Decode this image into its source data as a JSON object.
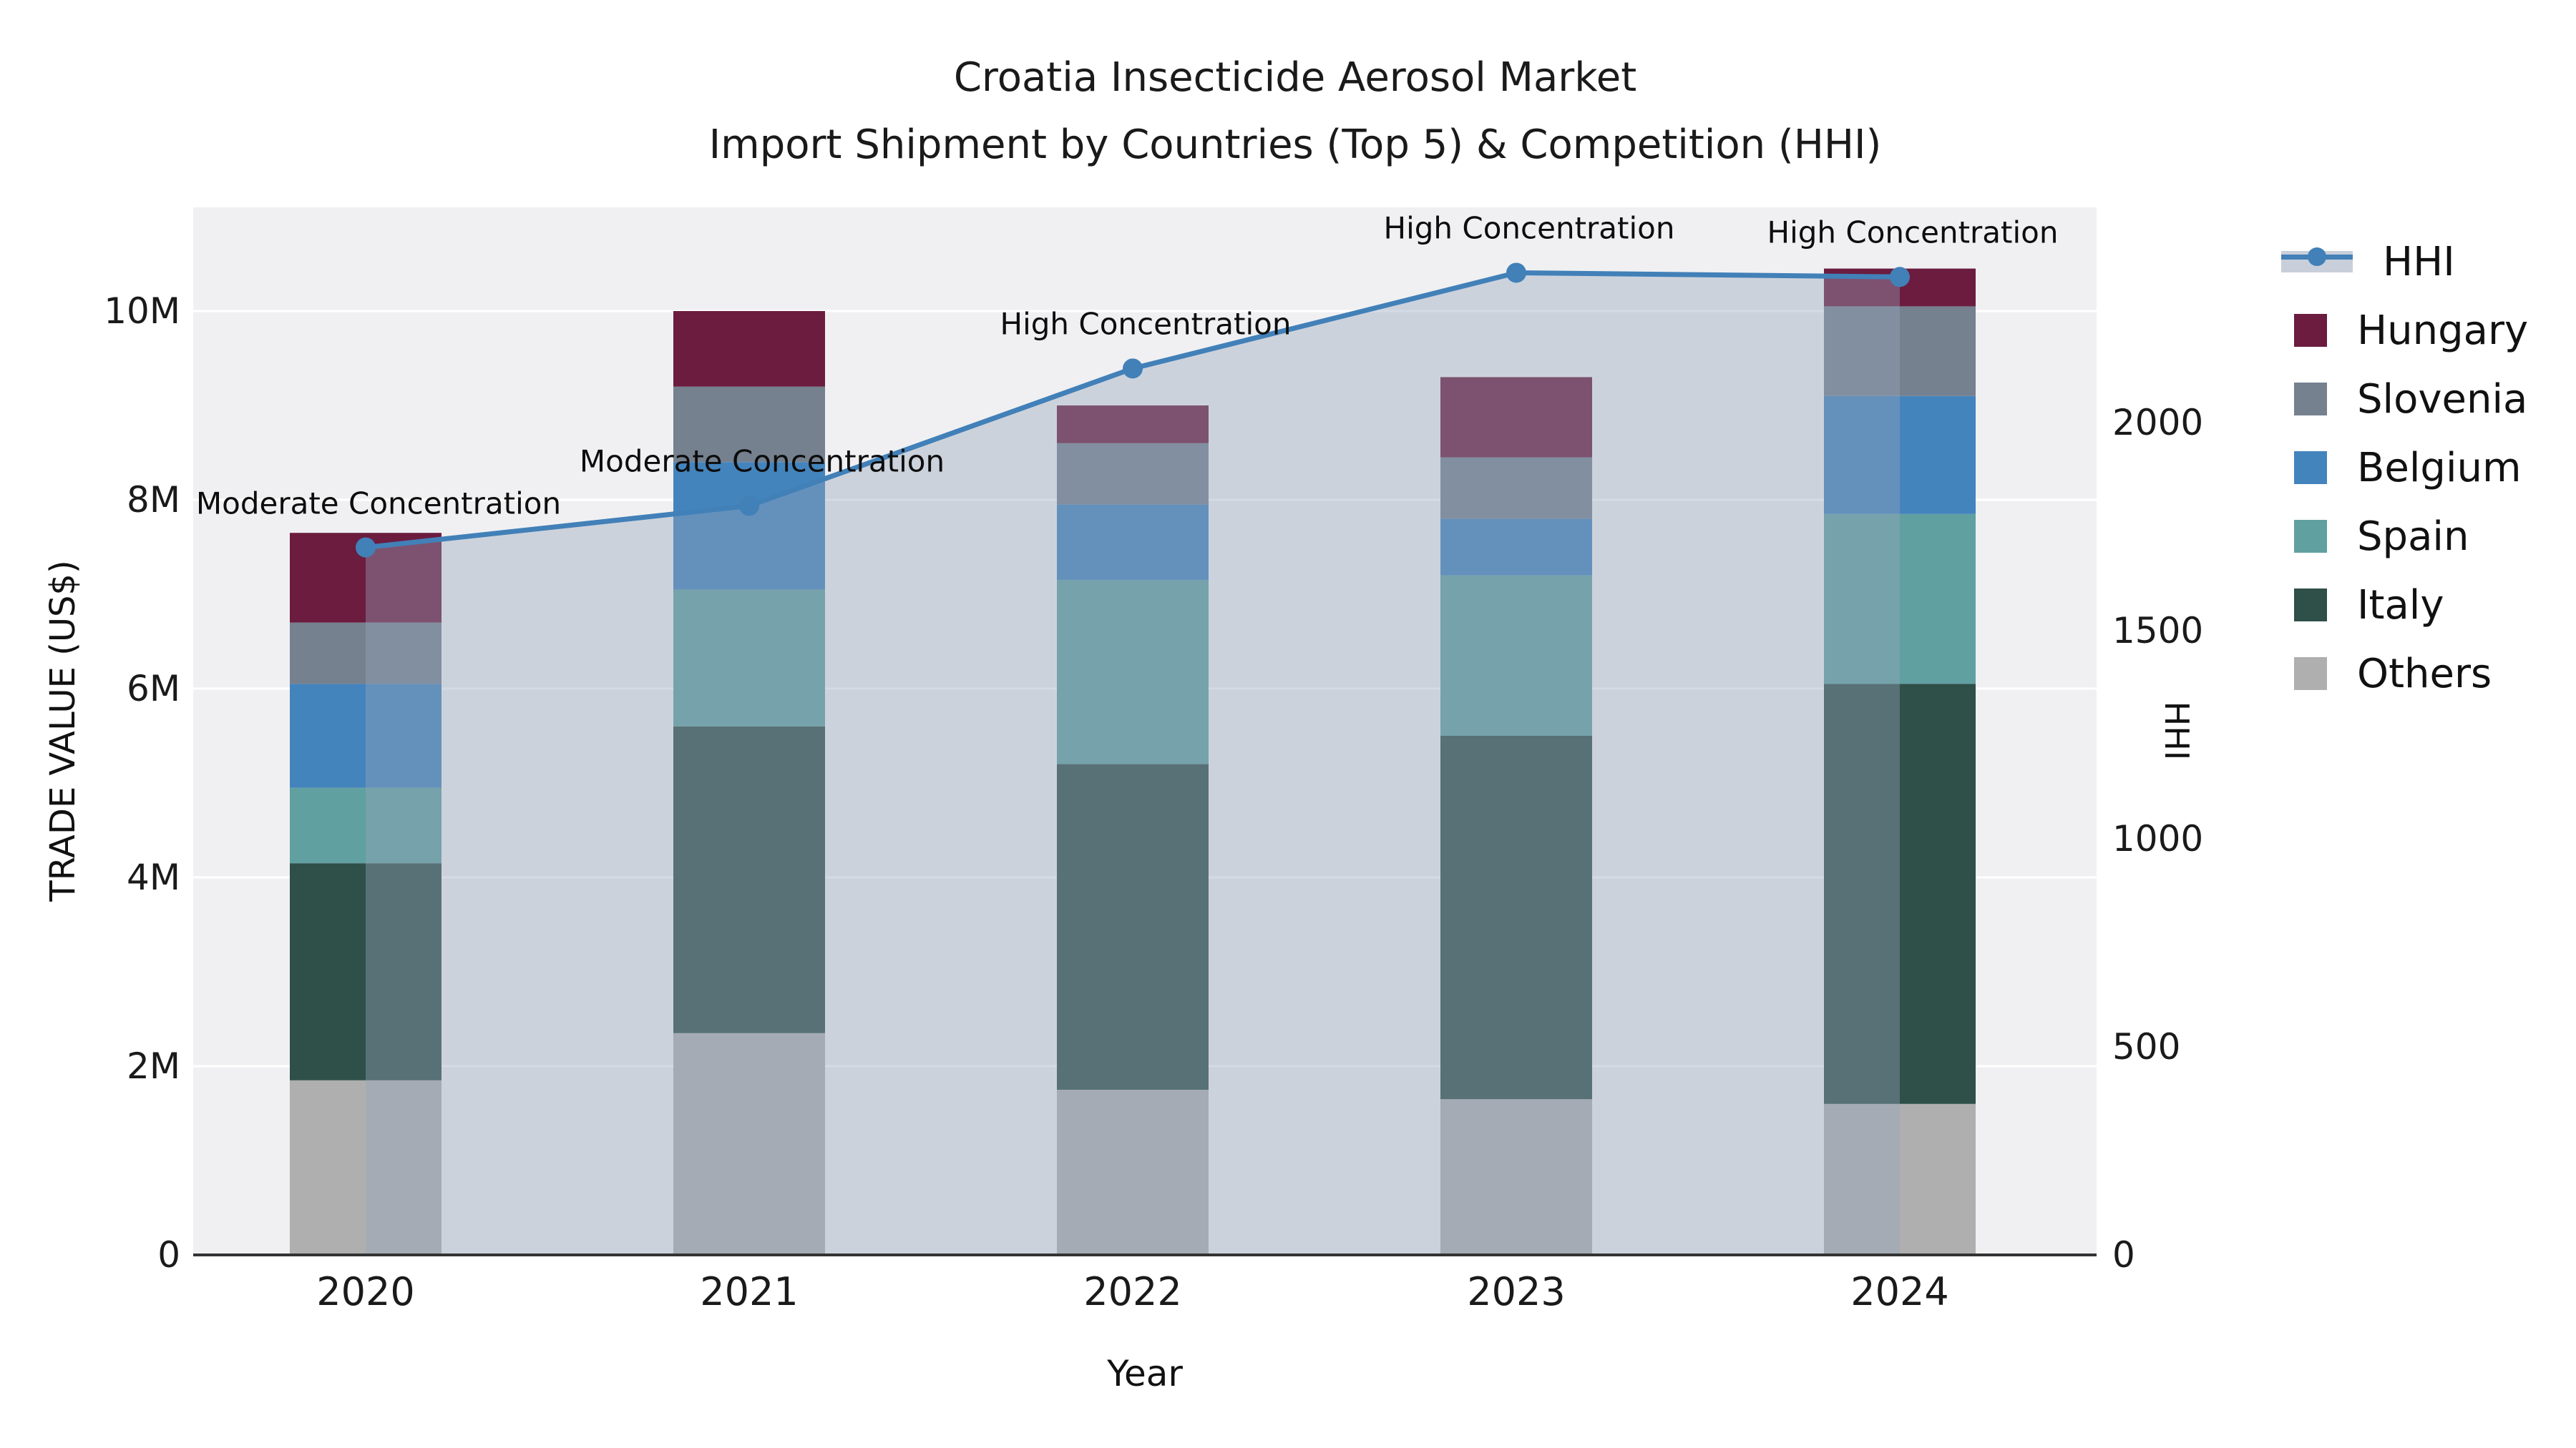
{
  "title": {
    "line1": "Croatia Insecticide Aerosol Market",
    "line2": "Import Shipment by Countries (Top 5) & Competition (HHI)"
  },
  "axes": {
    "x_label": "Year",
    "y_left_label": "TRADE VALUE (US$)",
    "y_right_label": "HHI",
    "x_ticks": [
      "2020",
      "2021",
      "2022",
      "2023",
      "2024"
    ],
    "y_left_ticks": [
      "0",
      "2M",
      "4M",
      "6M",
      "8M",
      "10M"
    ],
    "y_right_ticks": [
      "0",
      "500",
      "1000",
      "1500",
      "2000"
    ]
  },
  "legend": {
    "items": [
      {
        "label": "HHI",
        "type": "line",
        "color": "#4280b8"
      },
      {
        "label": "Hungary",
        "type": "swatch",
        "color": "#6b1c3f"
      },
      {
        "label": "Slovenia",
        "type": "swatch",
        "color": "#75818f"
      },
      {
        "label": "Belgium",
        "type": "swatch",
        "color": "#4484bd"
      },
      {
        "label": "Spain",
        "type": "swatch",
        "color": "#61a0a0"
      },
      {
        "label": "Italy",
        "type": "swatch",
        "color": "#2f4f49"
      },
      {
        "label": "Others",
        "type": "swatch",
        "color": "#afafaf"
      }
    ]
  },
  "chart_data": {
    "type": "bar",
    "subtype": "stacked-bars-with-line",
    "title": "Croatia Insecticide Aerosol Market — Import Shipment by Countries (Top 5) & Competition (HHI)",
    "xlabel": "Year",
    "ylabel_left": "TRADE VALUE (US$)",
    "ylabel_right": "HHI",
    "categories": [
      "2020",
      "2021",
      "2022",
      "2023",
      "2024"
    ],
    "unit": "M US$",
    "ylim_left_M": [
      0,
      11.1
    ],
    "ylim_right_HHI": [
      0,
      2518
    ],
    "grid": "horizontal, white on light panel",
    "legend_position": "right, outside plot",
    "series": [
      {
        "name": "Others",
        "color": "#afafaf",
        "values": [
          1.85,
          2.35,
          1.75,
          1.65,
          1.6
        ]
      },
      {
        "name": "Italy",
        "color": "#2f4f49",
        "values": [
          2.3,
          3.25,
          3.45,
          3.85,
          4.45
        ]
      },
      {
        "name": "Spain",
        "color": "#61a0a0",
        "values": [
          0.8,
          1.45,
          1.95,
          1.7,
          1.8
        ]
      },
      {
        "name": "Belgium",
        "color": "#4484bd",
        "values": [
          1.1,
          1.35,
          0.8,
          0.6,
          1.25
        ]
      },
      {
        "name": "Slovenia",
        "color": "#75818f",
        "values": [
          0.65,
          0.8,
          0.65,
          0.65,
          0.95
        ]
      },
      {
        "name": "Hungary",
        "color": "#6b1c3f",
        "values": [
          0.95,
          0.8,
          0.4,
          0.85,
          0.4
        ]
      }
    ],
    "bar_totals_M": [
      7.65,
      10.0,
      9.0,
      9.3,
      10.45
    ],
    "line_series": {
      "name": "HHI",
      "color": "#4280b8",
      "area_fill": "rgba(150,165,188,0.40)",
      "values": [
        1700,
        1800,
        2130,
        2360,
        2350
      ]
    },
    "annotations": [
      {
        "category": "2020",
        "text": "Moderate Concentration"
      },
      {
        "category": "2021",
        "text": "Moderate Concentration"
      },
      {
        "category": "2022",
        "text": "High Concentration"
      },
      {
        "category": "2023",
        "text": "High Concentration"
      },
      {
        "category": "2024",
        "text": "High Concentration"
      }
    ],
    "panel_background": "#f0f0f2",
    "gridline_color": "#ffffff",
    "axis_line_color": "#333333"
  }
}
